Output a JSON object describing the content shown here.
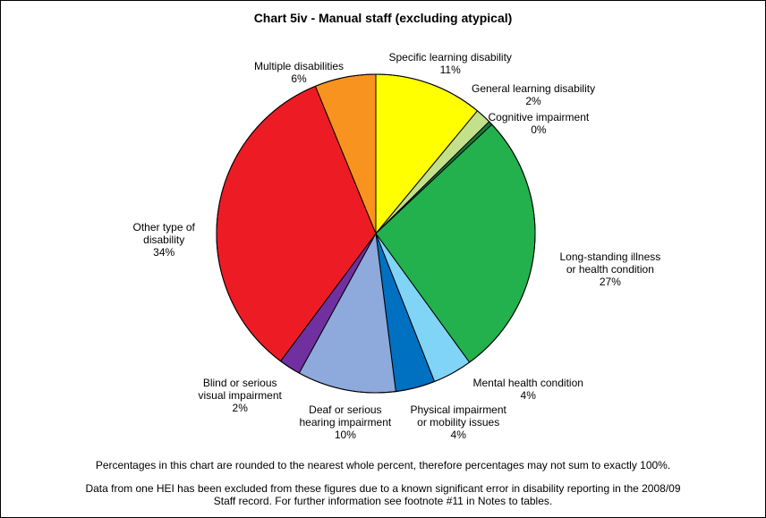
{
  "chart_data": {
    "type": "pie",
    "title": "Chart 5iv - Manual staff (excluding atypical)",
    "slices": [
      {
        "label_lines": [
          "Specific learning disability"
        ],
        "pct_label": "11%",
        "value": 11.0,
        "color": "#ffff00"
      },
      {
        "label_lines": [
          "General learning disability"
        ],
        "pct_label": "2%",
        "value": 1.6,
        "color": "#c3e08a"
      },
      {
        "label_lines": [
          "Cognitive impairment"
        ],
        "pct_label": "0%",
        "value": 0.4,
        "color": "#1a7a3a"
      },
      {
        "label_lines": [
          "Long-standing illness",
          "or health condition"
        ],
        "pct_label": "27%",
        "value": 27.0,
        "color": "#22b14c"
      },
      {
        "label_lines": [
          "Mental health condition"
        ],
        "pct_label": "4%",
        "value": 4.0,
        "color": "#80d4f6"
      },
      {
        "label_lines": [
          "Physical impairment",
          "or mobility issues"
        ],
        "pct_label": "4%",
        "value": 4.0,
        "color": "#0070c0"
      },
      {
        "label_lines": [
          "Deaf or serious",
          "hearing impairment"
        ],
        "pct_label": "10%",
        "value": 10.0,
        "color": "#8ea9db"
      },
      {
        "label_lines": [
          "Blind or serious",
          "visual impairment"
        ],
        "pct_label": "2%",
        "value": 2.2,
        "color": "#7030a0"
      },
      {
        "label_lines": [
          "Other type of",
          "disability"
        ],
        "pct_label": "34%",
        "value": 33.6,
        "color": "#ed1c24"
      },
      {
        "label_lines": [
          "Multiple disabilities"
        ],
        "pct_label": "6%",
        "value": 6.2,
        "color": "#f7931e"
      }
    ],
    "start_angle_deg": 0,
    "direction": "clockwise"
  },
  "notes": [
    "Percentages in this chart are rounded to the nearest whole percent, therefore percentages may not sum to exactly 100%.",
    "Data from one HEI has been excluded from these figures due to a known significant error in disability reporting in the 2008/09",
    "Staff record. For further information see footnote #11 in Notes to tables."
  ]
}
